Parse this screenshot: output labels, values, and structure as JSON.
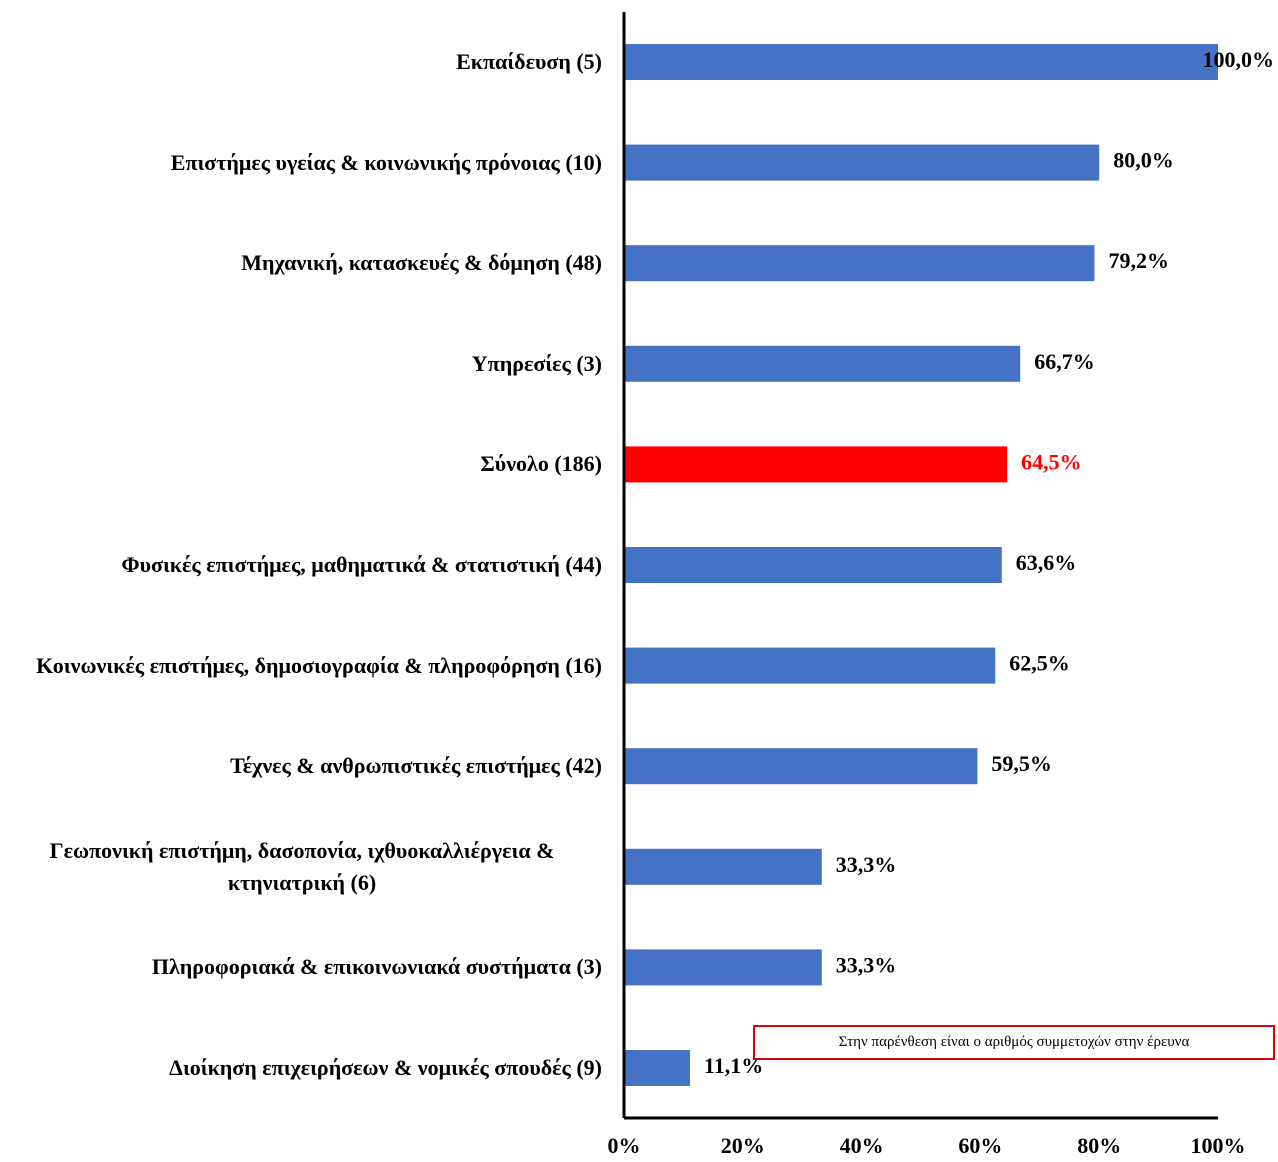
{
  "chart_data": {
    "type": "bar",
    "orientation": "horizontal",
    "categories": [
      "Εκπαίδευση (5)",
      "Επιστήμες υγείας & κοινωνικής πρόνοιας (10)",
      "Μηχανική, κατασκευές & δόμηση (48)",
      "Υπηρεσίες (3)",
      "Σύνολο (186)",
      "Φυσικές επιστήμες, μαθηματικά & στατιστική (44)",
      "Κοινωνικές επιστήμες, δημοσιογραφία & πληροφόρηση (16)",
      "Τέχνες & ανθρωπιστικές επιστήμες (42)",
      "Γεωπονική επιστήμη, δασοπονία, ιχθυοκαλλιέργεια & κτηνιατρική (6)",
      "Πληροφοριακά & επικοινωνιακά συστήματα (3)",
      "Διοίκηση επιχειρήσεων & νομικές σπουδές (9)"
    ],
    "values": [
      100.0,
      80.0,
      79.2,
      66.7,
      64.5,
      63.6,
      62.5,
      59.5,
      33.3,
      33.3,
      11.1
    ],
    "value_labels": [
      "100,0%",
      "80,0%",
      "79,2%",
      "66,7%",
      "64,5%",
      "63,6%",
      "62,5%",
      "59,5%",
      "33,3%",
      "33,3%",
      "11,1%"
    ],
    "colors": [
      "#4472c4",
      "#4472c4",
      "#4472c4",
      "#4472c4",
      "#ff0000",
      "#4472c4",
      "#4472c4",
      "#4472c4",
      "#4472c4",
      "#4472c4",
      "#4472c4"
    ],
    "xlim": [
      0,
      100
    ],
    "xticks": [
      {
        "value": 0,
        "label": "0%"
      },
      {
        "value": 20,
        "label": "20%"
      },
      {
        "value": 40,
        "label": "40%"
      },
      {
        "value": 60,
        "label": "60%"
      },
      {
        "value": 80,
        "label": "80%"
      },
      {
        "value": 100,
        "label": "100%"
      }
    ],
    "annotation": "Στην παρένθεση είναι ο αριθμός συμμετοχών στην έρευνα"
  }
}
